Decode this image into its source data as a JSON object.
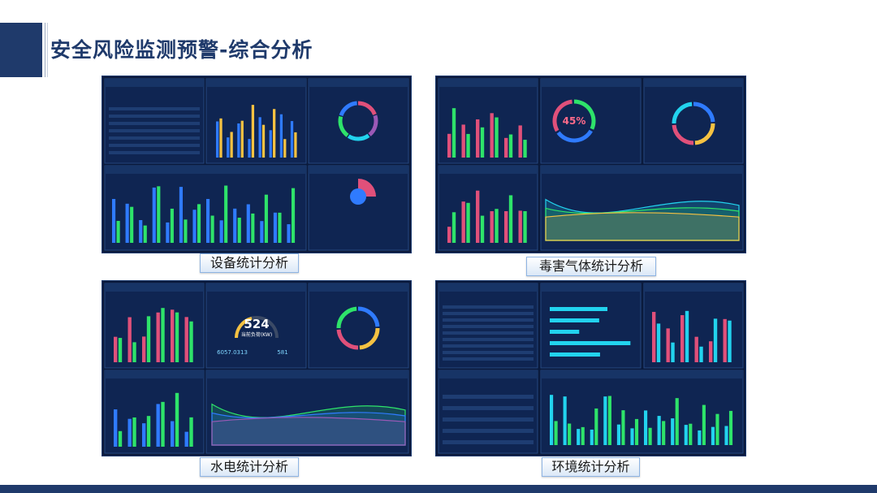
{
  "header": {
    "title": "安全风险监测预警-综合分析"
  },
  "panels": [
    {
      "caption": "设备统计分析"
    },
    {
      "caption": "毒害气体统计分析",
      "gauge": "45%"
    },
    {
      "caption": "水电统计分析",
      "load": "524",
      "load_label": "当前负荷(KW)",
      "left_value": "6057.0313",
      "right_value": "581"
    },
    {
      "caption": "环境统计分析"
    }
  ]
}
